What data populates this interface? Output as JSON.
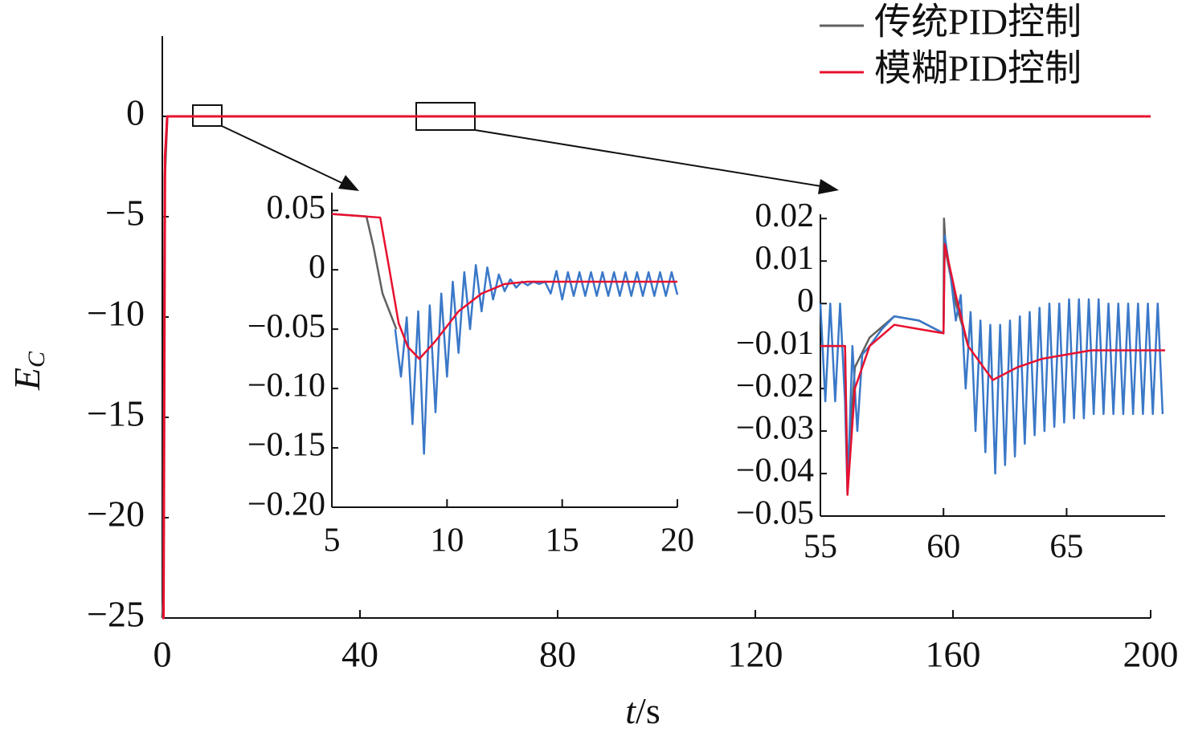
{
  "chart_data": [
    {
      "type": "line",
      "xlabel": [
        "t",
        "/s"
      ],
      "ylabel": [
        "E",
        "C"
      ],
      "xlim": [
        0,
        200
      ],
      "ylim": [
        -25,
        4
      ],
      "xticks": [
        0,
        40,
        80,
        120,
        160,
        200
      ],
      "yticks": [
        0,
        {
          "value": -5,
          "label": "−5"
        },
        {
          "value": -10,
          "label": "−10"
        },
        {
          "value": -15,
          "label": "−15"
        },
        {
          "value": -20,
          "label": "−20"
        },
        {
          "value": -25,
          "label": "−25"
        }
      ],
      "series": [
        {
          "name": "传统PID控制",
          "color": "#606060",
          "x": [
            0,
            0.2,
            0.5,
            1,
            200
          ],
          "values": [
            -25,
            -24,
            -3,
            0,
            0
          ]
        },
        {
          "name": "模糊PID控制",
          "color": "#e8102f",
          "x": [
            0,
            0.25,
            0.55,
            1,
            200
          ],
          "values": [
            -25,
            -25,
            -2,
            0,
            0
          ]
        }
      ]
    },
    {
      "type": "line",
      "xlim": [
        5,
        20
      ],
      "ylim": [
        -0.2,
        0.065
      ],
      "xticks": [
        5,
        10,
        15,
        20
      ],
      "yticks": [
        0.05,
        0,
        {
          "value": -0.05,
          "label": "−0.05"
        },
        {
          "value": -0.1,
          "label": "−0.10"
        },
        {
          "value": -0.15,
          "label": "−0.15"
        },
        {
          "value": -0.2,
          "label": "−0.20"
        }
      ],
      "series": [
        {
          "color": "#606060",
          "x": [
            5,
            6.5,
            6.8,
            7.2,
            7.8
          ],
          "values": [
            0.047,
            0.045,
            0.02,
            -0.02,
            -0.05
          ]
        },
        {
          "color": "#3a78c8",
          "x": [
            7.75,
            8,
            8.25,
            8.5,
            8.75,
            9,
            9.25,
            9.5,
            9.75,
            10,
            10.25,
            10.5,
            10.75,
            11,
            11.25,
            11.5,
            11.75,
            12,
            12.25,
            12.5,
            12.75,
            13,
            13.25,
            13.5,
            13.75,
            14,
            14.25,
            14.5,
            14.75,
            15,
            15.25,
            15.5,
            15.75,
            16,
            16.25,
            16.5,
            16.75,
            17,
            17.25,
            17.5,
            17.75,
            18,
            18.25,
            18.5,
            18.75,
            19,
            19.25,
            19.5,
            19.75,
            20
          ],
          "values": [
            -0.05,
            -0.09,
            -0.04,
            -0.13,
            -0.035,
            -0.155,
            -0.03,
            -0.12,
            -0.02,
            -0.09,
            -0.01,
            -0.07,
            -0.002,
            -0.05,
            0.004,
            -0.035,
            0.002,
            -0.025,
            -0.004,
            -0.018,
            -0.008,
            -0.015,
            -0.01,
            -0.013,
            -0.01,
            -0.012,
            -0.01,
            -0.02,
            -0.001,
            -0.025,
            -0.002,
            -0.022,
            -0.002,
            -0.022,
            -0.002,
            -0.022,
            -0.002,
            -0.022,
            -0.002,
            -0.022,
            -0.002,
            -0.022,
            -0.002,
            -0.022,
            -0.002,
            -0.022,
            -0.002,
            -0.022,
            -0.002,
            -0.021
          ]
        },
        {
          "color": "#e8102f",
          "x": [
            5,
            7.1,
            7.5,
            7.9,
            8.3,
            8.8,
            9.5,
            10.5,
            11.5,
            12.5,
            13.5,
            15,
            20
          ],
          "values": [
            0.047,
            0.044,
            0,
            -0.045,
            -0.065,
            -0.075,
            -0.06,
            -0.035,
            -0.02,
            -0.012,
            -0.01,
            -0.01,
            -0.01
          ]
        }
      ]
    },
    {
      "type": "line",
      "xlim": [
        55,
        69
      ],
      "ylim": [
        -0.05,
        0.021
      ],
      "xticks": [
        55,
        60,
        65
      ],
      "yticks": [
        0.02,
        0.01,
        0,
        {
          "value": -0.01,
          "label": "−0.01"
        },
        {
          "value": -0.02,
          "label": "−0.02"
        },
        {
          "value": -0.03,
          "label": "−0.03"
        },
        {
          "value": -0.04,
          "label": "−0.04"
        },
        {
          "value": -0.05,
          "label": "−0.05"
        }
      ],
      "series": [
        {
          "color": "#606060",
          "x": [
            55,
            56,
            56.1,
            56.4,
            57,
            58,
            59,
            60,
            60.02,
            60.1,
            60.5,
            61
          ],
          "values": [
            -0.01,
            -0.01,
            -0.04,
            -0.015,
            -0.008,
            -0.003,
            -0.004,
            -0.007,
            0.02,
            0.012,
            0,
            -0.01
          ]
        },
        {
          "color": "#3a78c8",
          "x": [
            55,
            55.2,
            55.4,
            55.6,
            55.8,
            56,
            56.1,
            56.3,
            56.5,
            56.7,
            57,
            57.5,
            58,
            59,
            60,
            60.05,
            60.3,
            60.5,
            60.7,
            60.9,
            61.1,
            61.3,
            61.5,
            61.7,
            61.9,
            62.1,
            62.3,
            62.5,
            62.7,
            62.9,
            63.1,
            63.3,
            63.5,
            63.7,
            63.9,
            64.1,
            64.3,
            64.5,
            64.7,
            64.9,
            65.1,
            65.3,
            65.5,
            65.7,
            65.9,
            66.1,
            66.3,
            66.5,
            66.7,
            66.9,
            67.1,
            67.3,
            67.5,
            67.7,
            67.9,
            68.1,
            68.3,
            68.5,
            68.7,
            68.9
          ],
          "values": [
            0,
            -0.023,
            0,
            -0.023,
            0,
            -0.023,
            -0.045,
            -0.01,
            -0.03,
            -0.012,
            -0.01,
            -0.006,
            -0.003,
            -0.004,
            -0.007,
            0.016,
            0.006,
            -0.004,
            0.002,
            -0.02,
            -0.002,
            -0.03,
            -0.004,
            -0.035,
            -0.005,
            -0.04,
            -0.005,
            -0.038,
            -0.004,
            -0.036,
            -0.003,
            -0.033,
            -0.002,
            -0.031,
            -0.001,
            -0.03,
            0,
            -0.029,
            0,
            -0.028,
            0.001,
            -0.027,
            0.001,
            -0.027,
            0.001,
            -0.026,
            0.001,
            -0.026,
            0,
            -0.026,
            0,
            -0.026,
            0,
            -0.026,
            0,
            -0.026,
            0,
            -0.026,
            0,
            -0.026
          ]
        },
        {
          "color": "#e8102f",
          "x": [
            55,
            56,
            56.1,
            56.4,
            57,
            58,
            59,
            60,
            60.05,
            60.5,
            61,
            62,
            63,
            64,
            65,
            66,
            67,
            69
          ],
          "values": [
            -0.01,
            -0.01,
            -0.045,
            -0.02,
            -0.01,
            -0.005,
            -0.006,
            -0.007,
            0.014,
            0.002,
            -0.01,
            -0.018,
            -0.015,
            -0.013,
            -0.012,
            -0.011,
            -0.011,
            -0.011
          ]
        }
      ]
    }
  ]
}
